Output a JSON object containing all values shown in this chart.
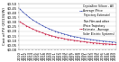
{
  "title": "",
  "ylabel": "Cost of PV (2013$/W)",
  "xlabel": "",
  "years": [
    2010,
    2011,
    2012,
    2013,
    2014,
    2015,
    2016,
    2017,
    2018,
    2019,
    2020,
    2021,
    2022,
    2023,
    2024,
    2025,
    2026,
    2027,
    2028,
    2029,
    2030,
    2031,
    2032,
    2033,
    2034,
    2035,
    2036,
    2037,
    2038,
    2039,
    2040
  ],
  "blue_values": [
    0.44,
    0.405,
    0.375,
    0.347,
    0.322,
    0.3,
    0.279,
    0.26,
    0.243,
    0.228,
    0.213,
    0.2,
    0.188,
    0.177,
    0.167,
    0.158,
    0.149,
    0.141,
    0.134,
    0.127,
    0.121,
    0.115,
    0.11,
    0.105,
    0.1,
    0.096,
    0.092,
    0.088,
    0.085,
    0.082,
    0.079
  ],
  "red_values": [
    0.3,
    0.278,
    0.258,
    0.24,
    0.223,
    0.208,
    0.194,
    0.181,
    0.17,
    0.159,
    0.149,
    0.14,
    0.132,
    0.124,
    0.117,
    0.111,
    0.105,
    0.099,
    0.094,
    0.089,
    0.085,
    0.081,
    0.077,
    0.073,
    0.07,
    0.067,
    0.064,
    0.062,
    0.059,
    0.057,
    0.055
  ],
  "blue_color": "#5566bb",
  "red_color": "#cc3355",
  "blue_label": "Crystalline Silicon - All\nAverage (Price\nTrajectory Estimate)",
  "red_label": "Thin Film and other\n(Price Trajectory\nEstimate - Average\nSolar Electric Systems)",
  "ylim": [
    0.0,
    0.5
  ],
  "yticks": [
    0.0,
    0.05,
    0.1,
    0.15,
    0.2,
    0.25,
    0.3,
    0.35,
    0.4,
    0.45,
    0.5
  ],
  "bg_color": "#ffffff",
  "grid_color": "#cccccc",
  "marker_blue": "o",
  "marker_red": "s",
  "linewidth": 0.5,
  "markersize": 1.0,
  "fontsize_tick": 2.8,
  "fontsize_label": 2.8,
  "fontsize_legend": 2.2
}
